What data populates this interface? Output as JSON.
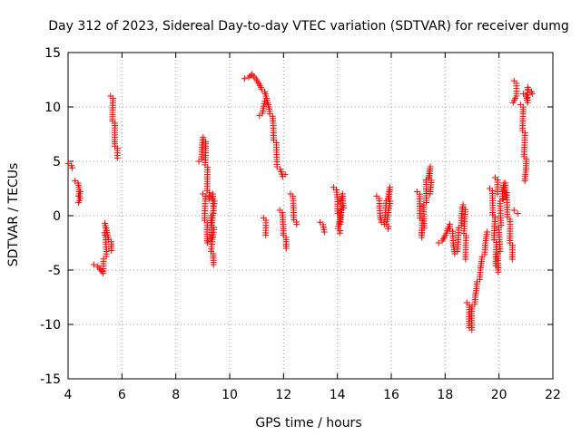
{
  "chart_data": {
    "type": "scatter",
    "title": "Day 312 of 2023, Sidereal Day-to-day VTEC variation (SDTVAR) for receiver dumg",
    "xlabel": "GPS time / hours",
    "ylabel": "SDTVAR / TECUs",
    "xlim": [
      4,
      22
    ],
    "ylim": [
      -15,
      15
    ],
    "x_ticks": [
      4,
      6,
      8,
      10,
      12,
      14,
      16,
      18,
      20,
      22
    ],
    "y_ticks": [
      -15,
      -10,
      -5,
      0,
      5,
      10,
      15
    ],
    "grid": true,
    "marker": "+",
    "series": [
      {
        "name": "SDTVAR",
        "color": "#ff0000",
        "segments": [
          [
            [
              4.05,
              4.8
            ],
            [
              4.12,
              4.4
            ]
          ],
          [
            [
              4.3,
              3.2
            ],
            [
              4.38,
              2.6
            ],
            [
              4.42,
              1.8
            ],
            [
              4.48,
              2.2
            ],
            [
              4.36,
              1.2
            ]
          ],
          [
            [
              5.0,
              -4.5
            ],
            [
              5.3,
              -5.3
            ],
            [
              5.35,
              -4.2
            ],
            [
              5.4,
              -3.3
            ],
            [
              5.42,
              -2.0
            ],
            [
              5.35,
              -0.7
            ],
            [
              5.55,
              -2.2
            ],
            [
              5.6,
              -3.2
            ]
          ],
          [
            [
              5.62,
              11.0
            ],
            [
              5.66,
              9.5
            ],
            [
              5.7,
              8.5
            ],
            [
              5.75,
              7.0
            ],
            [
              5.8,
              6.0
            ],
            [
              5.82,
              5.3
            ]
          ],
          [
            [
              8.9,
              5.0
            ],
            [
              8.98,
              6.5
            ],
            [
              9.05,
              7.2
            ],
            [
              9.1,
              6.0
            ],
            [
              9.15,
              4.0
            ],
            [
              9.2,
              2.5
            ],
            [
              9.22,
              1.5
            ]
          ],
          [
            [
              9.05,
              2.0
            ],
            [
              9.1,
              0.0
            ],
            [
              9.15,
              -1.5
            ],
            [
              9.2,
              -2.5
            ],
            [
              9.3,
              -2.0
            ],
            [
              9.35,
              0.0
            ],
            [
              9.4,
              2.0
            ],
            [
              9.35,
              -3.5
            ],
            [
              9.4,
              -4.5
            ]
          ],
          [
            [
              10.6,
              12.6
            ],
            [
              10.8,
              13.0
            ],
            [
              11.0,
              12.5
            ],
            [
              11.2,
              11.8
            ],
            [
              11.35,
              10.8
            ],
            [
              11.5,
              9.8
            ],
            [
              11.6,
              8.5
            ],
            [
              11.7,
              6.5
            ],
            [
              11.8,
              4.5
            ],
            [
              11.95,
              3.6
            ],
            [
              12.05,
              3.8
            ]
          ],
          [
            [
              11.15,
              9.2
            ],
            [
              11.3,
              10.5
            ]
          ],
          [
            [
              11.3,
              -0.2
            ],
            [
              11.35,
              -1.8
            ]
          ],
          [
            [
              11.9,
              0.5
            ],
            [
              12.0,
              -1.0
            ],
            [
              12.05,
              -2.0
            ],
            [
              12.1,
              -3.0
            ]
          ],
          [
            [
              12.3,
              2.0
            ],
            [
              12.38,
              0.5
            ],
            [
              12.45,
              -0.8
            ]
          ],
          [
            [
              13.4,
              -0.6
            ],
            [
              13.5,
              -1.5
            ]
          ],
          [
            [
              13.9,
              2.6
            ],
            [
              14.0,
              1.5
            ],
            [
              14.05,
              0.2
            ],
            [
              14.1,
              -0.8
            ],
            [
              14.18,
              0.5
            ],
            [
              14.2,
              2.0
            ],
            [
              14.05,
              -1.6
            ]
          ],
          [
            [
              15.5,
              1.8
            ],
            [
              15.6,
              0.0
            ],
            [
              15.7,
              -0.8
            ],
            [
              15.8,
              0.5
            ],
            [
              15.9,
              2.0
            ],
            [
              15.95,
              2.6
            ],
            [
              15.85,
              -1.2
            ]
          ],
          [
            [
              17.0,
              2.2
            ],
            [
              17.1,
              0.0
            ],
            [
              17.15,
              -2.0
            ],
            [
              17.25,
              1.0
            ],
            [
              17.35,
              3.5
            ],
            [
              17.45,
              4.5
            ],
            [
              17.45,
              2.0
            ]
          ],
          [
            [
              17.8,
              -2.5
            ],
            [
              18.0,
              -1.8
            ],
            [
              18.2,
              -0.8
            ],
            [
              18.3,
              -2.5
            ],
            [
              18.4,
              -3.5
            ],
            [
              18.5,
              -2.0
            ],
            [
              18.6,
              0.0
            ],
            [
              18.7,
              1.0
            ],
            [
              18.75,
              -2.5
            ],
            [
              18.8,
              -4.0
            ]
          ],
          [
            [
              18.85,
              -8.0
            ],
            [
              18.9,
              -9.5
            ],
            [
              18.95,
              -10.5
            ],
            [
              19.0,
              -9.0
            ],
            [
              19.1,
              -7.5
            ],
            [
              19.2,
              -6.5
            ],
            [
              19.3,
              -5.0
            ],
            [
              19.4,
              -4.0
            ],
            [
              19.5,
              -2.5
            ],
            [
              19.6,
              -1.5
            ]
          ],
          [
            [
              19.7,
              2.5
            ],
            [
              19.8,
              0.5
            ],
            [
              19.85,
              -2.0
            ],
            [
              19.9,
              -4.0
            ],
            [
              19.95,
              -5.2
            ],
            [
              20.0,
              -3.5
            ],
            [
              20.05,
              0.0
            ],
            [
              20.1,
              2.0
            ],
            [
              20.2,
              3.0
            ],
            [
              20.3,
              1.0
            ],
            [
              20.4,
              -1.0
            ],
            [
              20.5,
              -4.0
            ]
          ],
          [
            [
              19.9,
              3.5
            ],
            [
              19.95,
              2.0
            ]
          ],
          [
            [
              20.2,
              1.5
            ],
            [
              20.25,
              3.0
            ]
          ],
          [
            [
              20.6,
              12.4
            ],
            [
              20.65,
              11.0
            ],
            [
              20.55,
              10.4
            ]
          ],
          [
            [
              20.95,
              11.2
            ],
            [
              21.05,
              10.4
            ],
            [
              21.1,
              11.8
            ],
            [
              21.2,
              11.2
            ]
          ],
          [
            [
              20.85,
              10.2
            ],
            [
              20.9,
              8.5
            ],
            [
              20.95,
              6.5
            ],
            [
              20.98,
              5.0
            ],
            [
              21.0,
              4.2
            ],
            [
              21.0,
              3.2
            ]
          ],
          [
            [
              20.6,
              0.5
            ],
            [
              20.65,
              0.2
            ]
          ]
        ]
      }
    ]
  }
}
